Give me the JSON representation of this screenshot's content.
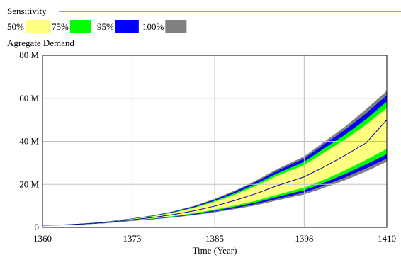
{
  "legend": {
    "title": "Sensitivity",
    "items": [
      {
        "label": "50%",
        "color": "#ffff80"
      },
      {
        "label": "75%",
        "color": "#00ff00"
      },
      {
        "label": "95%",
        "color": "#0000ff"
      },
      {
        "label": "100%",
        "color": "#808080"
      }
    ],
    "rule_color": "#3333cc"
  },
  "chart_data": {
    "type": "area",
    "title": "Agregate Demand",
    "xlabel": "Time (Year)",
    "ylabel": "",
    "xlim": [
      1360,
      1410
    ],
    "ylim": [
      0,
      80000000
    ],
    "x_ticks": [
      1360,
      1373,
      1385,
      1398,
      1410
    ],
    "y_ticks": [
      {
        "value": 0,
        "label": "0"
      },
      {
        "value": 20000000,
        "label": "20 M"
      },
      {
        "value": 40000000,
        "label": "40 M"
      },
      {
        "value": 60000000,
        "label": "60 M"
      },
      {
        "value": 80000000,
        "label": "80 M"
      }
    ],
    "grid": true,
    "x": [
      1360,
      1363,
      1366,
      1369,
      1373,
      1376,
      1379,
      1382,
      1385,
      1388,
      1391,
      1394,
      1398,
      1401,
      1404,
      1407,
      1410
    ],
    "bands": [
      {
        "level": "100%",
        "color": "#808080",
        "upper": [
          1000000,
          1200000,
          1800000,
          2600000,
          4200000,
          5600000,
          7500000,
          10000000,
          13300000,
          17200000,
          21800000,
          27000000,
          33000000,
          40000000,
          47000000,
          55000000,
          63500000
        ],
        "lower": [
          1000000,
          1050000,
          1400000,
          1900000,
          3000000,
          3700000,
          4600000,
          5700000,
          7000000,
          8500000,
          10300000,
          12500000,
          15300000,
          18500000,
          22000000,
          26000000,
          30500000
        ]
      },
      {
        "level": "95%",
        "color": "#0000ff",
        "upper": [
          1000000,
          1200000,
          1800000,
          2550000,
          4100000,
          5450000,
          7300000,
          9700000,
          12900000,
          16700000,
          21200000,
          26200000,
          32000000,
          38800000,
          45500000,
          53000000,
          61500000
        ],
        "lower": [
          1000000,
          1060000,
          1420000,
          1950000,
          3100000,
          3850000,
          4800000,
          6000000,
          7400000,
          9000000,
          10900000,
          13200000,
          16200000,
          19600000,
          23300000,
          27500000,
          32000000
        ]
      },
      {
        "level": "75%",
        "color": "#00ff00",
        "upper": [
          1000000,
          1190000,
          1760000,
          2500000,
          4000000,
          5300000,
          7050000,
          9350000,
          12400000,
          16000000,
          20200000,
          25000000,
          30500000,
          36900000,
          43200000,
          50300000,
          58500000
        ],
        "lower": [
          1000000,
          1080000,
          1450000,
          2000000,
          3200000,
          4000000,
          5000000,
          6300000,
          7800000,
          9600000,
          11600000,
          14100000,
          17300000,
          20900000,
          24900000,
          29300000,
          34000000
        ]
      },
      {
        "level": "50%",
        "color": "#ffff80",
        "upper": [
          1000000,
          1180000,
          1720000,
          2450000,
          3900000,
          5150000,
          6850000,
          9050000,
          11900000,
          15300000,
          19300000,
          23900000,
          29000000,
          35000000,
          41000000,
          47800000,
          55500000
        ],
        "lower": [
          1000000,
          1100000,
          1500000,
          2050000,
          3300000,
          4150000,
          5250000,
          6600000,
          8250000,
          10200000,
          12400000,
          15100000,
          18500000,
          22300000,
          26600000,
          31400000,
          36500000
        ]
      }
    ],
    "series": [
      {
        "values": [
          1000000,
          1140000,
          1600000,
          2250000,
          3550000,
          4600000,
          5950000,
          7700000,
          9900000,
          12600000,
          15700000,
          19300000,
          23500000,
          28300000,
          33600000,
          39300000,
          50000000
        ],
        "color": "#0000aa"
      }
    ]
  }
}
